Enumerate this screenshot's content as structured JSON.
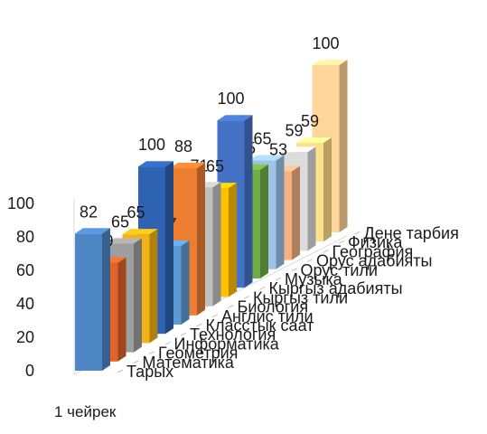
{
  "header": {
    "title": ""
  },
  "chart_data": {
    "type": "bar",
    "title": "",
    "xlabel": "1 чейрек",
    "ylabel": "",
    "ylim": [
      0,
      100
    ],
    "yticks": [
      0,
      20,
      40,
      60,
      80,
      100
    ],
    "grid": false,
    "legend": "none",
    "categories": [
      "1 чейрек"
    ],
    "series": [
      {
        "name": "Тарых",
        "value": 82,
        "color": "#4e86c6"
      },
      {
        "name": "Математика",
        "value": 59,
        "color": "#e0632a"
      },
      {
        "name": "Геометрия",
        "value": 65,
        "color": "#9e9e9e"
      },
      {
        "name": "Информатика",
        "value": 65,
        "color": "#f3b216"
      },
      {
        "name": "Технология",
        "value": 100,
        "color": "#2e62b2"
      },
      {
        "name": "Класстык саат",
        "value": 47,
        "color": "#5b9bd5"
      },
      {
        "name": "Англис тили",
        "value": 88,
        "color": "#ed7d31"
      },
      {
        "name": "Биология",
        "value": 71,
        "color": "#bfbfbf"
      },
      {
        "name": "Кыргыз тили",
        "value": 65,
        "color": "#ffc000"
      },
      {
        "name": "Кыргыз адабияты",
        "value": 100,
        "color": "#4472c4"
      },
      {
        "name": "Музыка",
        "value": 65,
        "color": "#70ad47"
      },
      {
        "name": "Орус тили",
        "value": 65,
        "color": "#9dc3e6"
      },
      {
        "name": "Орус адабияты",
        "value": 53,
        "color": "#f4b183"
      },
      {
        "name": "География",
        "value": 59,
        "color": "#dcdcdc"
      },
      {
        "name": "Физика",
        "value": 59,
        "color": "#ffe08a"
      },
      {
        "name": "Дене тарбия",
        "value": 100,
        "color": "#ffd699"
      }
    ]
  }
}
